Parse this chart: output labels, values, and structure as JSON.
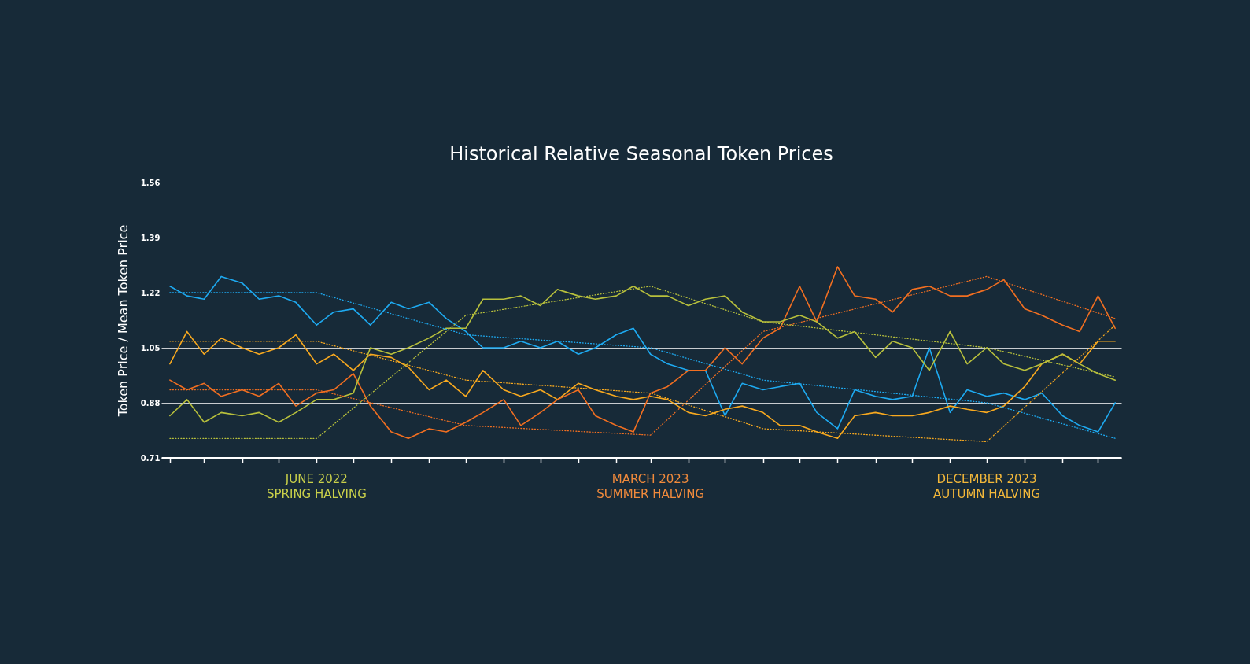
{
  "chart_data": {
    "type": "line",
    "title": "Historical Relative Seasonal Token Prices",
    "ylabel": "Token Price / Mean Token Price",
    "x": [
      "2022-02-01",
      "2022-02-15",
      "2022-03-01",
      "2022-03-15",
      "2022-04-01",
      "2022-04-15",
      "2022-05-01",
      "2022-05-15",
      "2022-06-01",
      "2022-06-15",
      "2022-07-01",
      "2022-07-15",
      "2022-08-01",
      "2022-08-15",
      "2022-09-01",
      "2022-09-15",
      "2022-10-01",
      "2022-10-15",
      "2022-11-01",
      "2022-11-15",
      "2022-12-01",
      "2022-12-15",
      "2023-01-01",
      "2023-01-15",
      "2023-02-01",
      "2023-02-15",
      "2023-03-01",
      "2023-03-15",
      "2023-04-01",
      "2023-04-15",
      "2023-05-01",
      "2023-05-15",
      "2023-06-01",
      "2023-06-15",
      "2023-07-01",
      "2023-07-15",
      "2023-08-01",
      "2023-08-15",
      "2023-09-01",
      "2023-09-15",
      "2023-10-01",
      "2023-10-15",
      "2023-11-01",
      "2023-11-15",
      "2023-12-01",
      "2023-12-15",
      "2024-01-01",
      "2024-01-15",
      "2024-02-01",
      "2024-02-15",
      "2024-03-01",
      "2024-03-15"
    ],
    "series": [
      {
        "color": "#1eaaf1",
        "values": [
          1.24,
          1.21,
          1.2,
          1.27,
          1.25,
          1.2,
          1.21,
          1.19,
          1.12,
          1.16,
          1.17,
          1.12,
          1.19,
          1.17,
          1.19,
          1.14,
          1.1,
          1.05,
          1.05,
          1.07,
          1.05,
          1.07,
          1.03,
          1.05,
          1.09,
          1.11,
          1.03,
          1.0,
          0.98,
          0.98,
          0.84,
          0.94,
          0.92,
          0.93,
          0.94,
          0.85,
          0.8,
          0.92,
          0.9,
          0.89,
          0.9,
          1.05,
          0.85,
          0.92,
          0.9,
          0.91,
          0.89,
          0.91,
          0.84,
          0.81,
          0.79,
          0.88
        ]
      },
      {
        "color": "#f8a91f",
        "values": [
          1.0,
          1.1,
          1.03,
          1.08,
          1.05,
          1.03,
          1.05,
          1.09,
          1.0,
          1.03,
          0.98,
          1.03,
          1.02,
          0.99,
          0.92,
          0.95,
          0.9,
          0.98,
          0.92,
          0.9,
          0.92,
          0.89,
          0.94,
          0.92,
          0.9,
          0.89,
          0.9,
          0.89,
          0.85,
          0.84,
          0.86,
          0.87,
          0.85,
          0.81,
          0.81,
          0.79,
          0.77,
          0.84,
          0.85,
          0.84,
          0.84,
          0.85,
          0.87,
          0.86,
          0.85,
          0.87,
          0.93,
          1.0,
          1.03,
          1.0,
          1.07,
          1.07
        ]
      },
      {
        "color": "#f26f21",
        "values": [
          0.95,
          0.92,
          0.94,
          0.9,
          0.92,
          0.9,
          0.94,
          0.87,
          0.91,
          0.92,
          0.97,
          0.87,
          0.79,
          0.77,
          0.8,
          0.79,
          0.82,
          0.85,
          0.89,
          0.81,
          0.85,
          0.89,
          0.92,
          0.84,
          0.81,
          0.79,
          0.91,
          0.93,
          0.98,
          0.98,
          1.05,
          1.0,
          1.08,
          1.11,
          1.24,
          1.13,
          1.3,
          1.21,
          1.2,
          1.16,
          1.23,
          1.24,
          1.21,
          1.21,
          1.23,
          1.26,
          1.17,
          1.15,
          1.12,
          1.1,
          1.21,
          1.11
        ]
      },
      {
        "color": "#b8c03c",
        "values": [
          0.84,
          0.89,
          0.82,
          0.85,
          0.84,
          0.85,
          0.82,
          0.85,
          0.89,
          0.89,
          0.91,
          1.05,
          1.03,
          1.05,
          1.08,
          1.11,
          1.11,
          1.2,
          1.2,
          1.21,
          1.18,
          1.23,
          1.21,
          1.2,
          1.21,
          1.24,
          1.21,
          1.21,
          1.18,
          1.2,
          1.21,
          1.16,
          1.13,
          1.13,
          1.15,
          1.13,
          1.08,
          1.1,
          1.02,
          1.07,
          1.05,
          0.98,
          1.1,
          1.0,
          1.05,
          1.0,
          0.98,
          1.0,
          1.03,
          1.0,
          0.97,
          0.95
        ]
      },
      {
        "type": "line",
        "line_style": "dotted",
        "color": "#1eaaf1",
        "x": [
          "2022-02-01",
          "2022-06-01",
          "2022-10-01",
          "2023-03-01",
          "2023-06-01",
          "2023-12-01",
          "2024-03-15"
        ],
        "values": [
          1.22,
          1.22,
          1.09,
          1.05,
          0.95,
          0.88,
          0.77
        ]
      },
      {
        "type": "line",
        "line_style": "dotted",
        "color": "#f8a91f",
        "x": [
          "2022-02-01",
          "2022-06-01",
          "2022-10-01",
          "2023-03-01",
          "2023-06-01",
          "2023-12-01",
          "2024-03-15"
        ],
        "values": [
          1.07,
          1.07,
          0.95,
          0.91,
          0.8,
          0.76,
          1.12
        ]
      },
      {
        "type": "line",
        "line_style": "dotted",
        "color": "#f26f21",
        "x": [
          "2022-02-01",
          "2022-06-01",
          "2022-10-01",
          "2023-03-01",
          "2023-06-01",
          "2023-12-01",
          "2024-03-15"
        ],
        "values": [
          0.92,
          0.92,
          0.81,
          0.78,
          1.1,
          1.27,
          1.14
        ]
      },
      {
        "type": "line",
        "line_style": "dotted",
        "color": "#b8c03c",
        "x": [
          "2022-02-01",
          "2022-06-01",
          "2022-10-01",
          "2023-03-01",
          "2023-06-01",
          "2023-12-01",
          "2024-03-15"
        ],
        "values": [
          0.77,
          0.77,
          1.15,
          1.24,
          1.13,
          1.05,
          0.96
        ]
      }
    ],
    "xlim": [
      "2022-01-25",
      "2024-03-20"
    ],
    "xticks": [
      {
        "value": "2022-02-01",
        "label": null
      },
      {
        "value": "2022-03-01",
        "label": null
      },
      {
        "value": "2022-04-01",
        "label": null
      },
      {
        "value": "2022-05-01",
        "label": null
      },
      {
        "value": "2022-06-01",
        "label": "JUNE 2022\nSPRING HALVING"
      },
      {
        "value": "2022-07-01",
        "label": null
      },
      {
        "value": "2022-08-01",
        "label": null
      },
      {
        "value": "2022-09-01",
        "label": null
      },
      {
        "value": "2022-10-01",
        "label": null
      },
      {
        "value": "2022-11-01",
        "label": null
      },
      {
        "value": "2022-12-01",
        "label": null
      },
      {
        "value": "2023-01-01",
        "label": null
      },
      {
        "value": "2023-02-01",
        "label": null
      },
      {
        "value": "2023-03-01",
        "label": "MARCH 2023\nSUMMER HALVING"
      },
      {
        "value": "2023-04-01",
        "label": null
      },
      {
        "value": "2023-05-01",
        "label": null
      },
      {
        "value": "2023-06-01",
        "label": null
      },
      {
        "value": "2023-07-01",
        "label": null
      },
      {
        "value": "2023-08-01",
        "label": null
      },
      {
        "value": "2023-09-01",
        "label": null
      },
      {
        "value": "2023-10-01",
        "label": null
      },
      {
        "value": "2023-11-01",
        "label": null
      },
      {
        "value": "2023-12-01",
        "label": "DECEMBER 2023\nAUTUMN HALVING"
      },
      {
        "value": "2024-01-01",
        "label": null
      },
      {
        "value": "2024-02-01",
        "label": null
      },
      {
        "value": "2024-03-01",
        "label": null
      }
    ],
    "ylim": [
      0.71,
      1.56
    ],
    "yticks": [
      0.71,
      0.88,
      1.05,
      1.22,
      1.39,
      1.56
    ],
    "grid": "y",
    "marker": "none",
    "line_style": "solid"
  }
}
